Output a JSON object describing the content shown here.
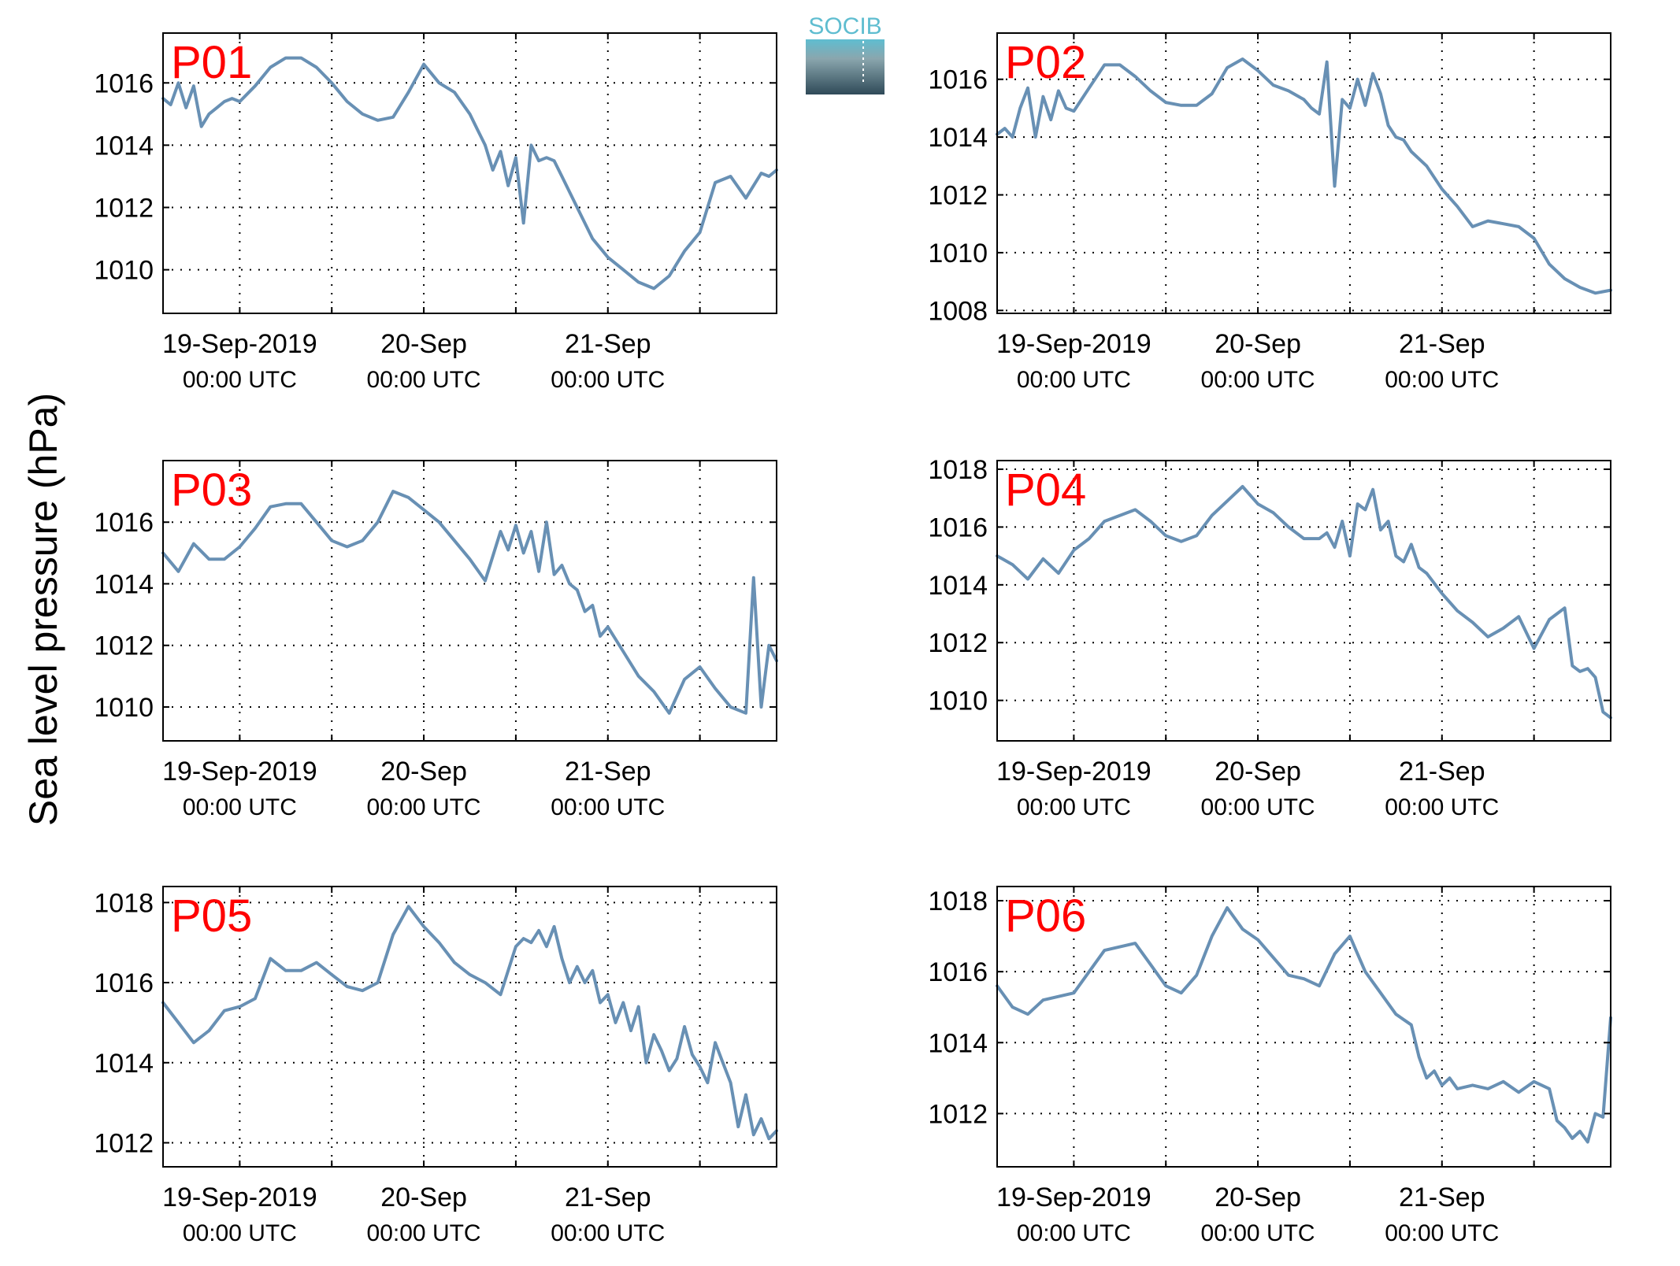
{
  "figure": {
    "ylabel": "Sea level pressure (hPa)",
    "logo_text": "SOCIB",
    "line_color": "#6890B4",
    "label_color": "#FF0000",
    "x_tick_dates": [
      "19-Sep-2019",
      "20-Sep",
      "21-Sep"
    ],
    "x_tick_time": "00:00 UTC"
  },
  "chart_data": [
    {
      "type": "line",
      "title": "P01",
      "xlabel": "",
      "ylabel": "Sea level pressure (hPa)",
      "x_unit": "hours since 19-Sep-2019 00:00 UTC",
      "xlim": [
        -10,
        70
      ],
      "ylim": [
        1008.6,
        1017.6
      ],
      "yticks": [
        1010,
        1012,
        1014,
        1016
      ],
      "grid": true,
      "x": [
        -10,
        -9,
        -8,
        -7,
        -6,
        -5,
        -4,
        -3,
        -2,
        -1,
        0,
        2,
        4,
        6,
        8,
        10,
        12,
        14,
        16,
        18,
        20,
        22,
        24,
        26,
        28,
        30,
        31,
        32,
        33,
        34,
        35,
        36,
        37,
        38,
        39,
        40,
        41,
        42,
        44,
        46,
        48,
        50,
        52,
        54,
        56,
        58,
        60,
        62,
        64,
        66,
        68,
        69,
        70
      ],
      "values": [
        1015.5,
        1015.3,
        1016.0,
        1015.2,
        1015.9,
        1014.6,
        1015.0,
        1015.2,
        1015.4,
        1015.5,
        1015.4,
        1015.9,
        1016.5,
        1016.8,
        1016.8,
        1016.5,
        1016.0,
        1015.4,
        1015.0,
        1014.8,
        1014.9,
        1015.7,
        1016.6,
        1016.0,
        1015.7,
        1015.0,
        1014.5,
        1014.0,
        1013.2,
        1013.8,
        1012.7,
        1013.6,
        1011.5,
        1014.0,
        1013.5,
        1013.6,
        1013.5,
        1013.0,
        1012.0,
        1011.0,
        1010.4,
        1010.0,
        1009.6,
        1009.4,
        1009.8,
        1010.6,
        1011.2,
        1012.8,
        1013.0,
        1012.3,
        1013.1,
        1013.0,
        1013.2
      ],
      "series": []
    },
    {
      "type": "line",
      "title": "P02",
      "xlabel": "",
      "ylabel": "Sea level pressure (hPa)",
      "x_unit": "hours since 19-Sep-2019 00:00 UTC",
      "xlim": [
        -10,
        70
      ],
      "ylim": [
        1007.9,
        1017.6
      ],
      "yticks": [
        1008,
        1010,
        1012,
        1014,
        1016
      ],
      "grid": true,
      "x": [
        -10,
        -9,
        -8,
        -7,
        -6,
        -5,
        -4,
        -3,
        -2,
        -1,
        0,
        2,
        4,
        6,
        8,
        10,
        12,
        14,
        16,
        18,
        20,
        22,
        24,
        26,
        28,
        30,
        31,
        32,
        33,
        34,
        35,
        36,
        37,
        38,
        39,
        40,
        41,
        42,
        43,
        44,
        46,
        48,
        50,
        52,
        54,
        56,
        58,
        60,
        62,
        64,
        66,
        68,
        70
      ],
      "values": [
        1014.1,
        1014.3,
        1014.0,
        1015.0,
        1015.7,
        1014.0,
        1015.4,
        1014.6,
        1015.6,
        1015.0,
        1014.9,
        1015.7,
        1016.5,
        1016.5,
        1016.1,
        1015.6,
        1015.2,
        1015.1,
        1015.1,
        1015.5,
        1016.4,
        1016.7,
        1016.3,
        1015.8,
        1015.6,
        1015.3,
        1015.0,
        1014.8,
        1016.6,
        1012.3,
        1015.3,
        1015.0,
        1016.0,
        1015.1,
        1016.2,
        1015.5,
        1014.4,
        1014.0,
        1013.9,
        1013.5,
        1013.0,
        1012.2,
        1011.6,
        1010.9,
        1011.1,
        1011.0,
        1010.9,
        1010.5,
        1009.6,
        1009.1,
        1008.8,
        1008.6,
        1008.7
      ],
      "series": []
    },
    {
      "type": "line",
      "title": "P03",
      "xlabel": "",
      "ylabel": "Sea level pressure (hPa)",
      "x_unit": "hours since 19-Sep-2019 00:00 UTC",
      "xlim": [
        -10,
        70
      ],
      "ylim": [
        1008.9,
        1018.0
      ],
      "yticks": [
        1010,
        1012,
        1014,
        1016
      ],
      "grid": true,
      "x": [
        -10,
        -8,
        -6,
        -4,
        -2,
        0,
        2,
        4,
        6,
        8,
        10,
        12,
        14,
        16,
        18,
        20,
        22,
        24,
        26,
        28,
        30,
        32,
        34,
        35,
        36,
        37,
        38,
        39,
        40,
        41,
        42,
        43,
        44,
        45,
        46,
        47,
        48,
        50,
        52,
        54,
        56,
        58,
        60,
        62,
        64,
        66,
        67,
        68,
        69,
        70
      ],
      "values": [
        1015.0,
        1014.4,
        1015.3,
        1014.8,
        1014.8,
        1015.2,
        1015.8,
        1016.5,
        1016.6,
        1016.6,
        1016.0,
        1015.4,
        1015.2,
        1015.4,
        1016.0,
        1017.0,
        1016.8,
        1016.4,
        1016.0,
        1015.4,
        1014.8,
        1014.1,
        1015.7,
        1015.1,
        1015.9,
        1015.0,
        1015.7,
        1014.4,
        1016.0,
        1014.3,
        1014.6,
        1014.0,
        1013.8,
        1013.1,
        1013.3,
        1012.3,
        1012.6,
        1011.8,
        1011.0,
        1010.5,
        1009.8,
        1010.9,
        1011.3,
        1010.6,
        1010.0,
        1009.8,
        1014.2,
        1010.0,
        1012.0,
        1011.5
      ],
      "series": []
    },
    {
      "type": "line",
      "title": "P04",
      "xlabel": "",
      "ylabel": "Sea level pressure (hPa)",
      "x_unit": "hours since 19-Sep-2019 00:00 UTC",
      "xlim": [
        -10,
        70
      ],
      "ylim": [
        1008.6,
        1018.3
      ],
      "yticks": [
        1010,
        1012,
        1014,
        1016,
        1018
      ],
      "grid": true,
      "x": [
        -10,
        -8,
        -6,
        -4,
        -2,
        0,
        2,
        4,
        6,
        8,
        10,
        12,
        14,
        16,
        18,
        20,
        22,
        24,
        26,
        28,
        30,
        32,
        33,
        34,
        35,
        36,
        37,
        38,
        39,
        40,
        41,
        42,
        43,
        44,
        45,
        46,
        48,
        50,
        52,
        54,
        56,
        58,
        60,
        62,
        64,
        65,
        66,
        67,
        68,
        69,
        70
      ],
      "values": [
        1015.0,
        1014.7,
        1014.2,
        1014.9,
        1014.4,
        1015.2,
        1015.6,
        1016.2,
        1016.4,
        1016.6,
        1016.2,
        1015.7,
        1015.5,
        1015.7,
        1016.4,
        1016.9,
        1017.4,
        1016.8,
        1016.5,
        1016.0,
        1015.6,
        1015.6,
        1015.8,
        1015.3,
        1016.2,
        1015.0,
        1016.8,
        1016.6,
        1017.3,
        1015.9,
        1016.2,
        1015.0,
        1014.8,
        1015.4,
        1014.6,
        1014.4,
        1013.7,
        1013.1,
        1012.7,
        1012.2,
        1012.5,
        1012.9,
        1011.8,
        1012.8,
        1013.2,
        1011.2,
        1011.0,
        1011.1,
        1010.8,
        1009.6,
        1009.4
      ],
      "series": []
    },
    {
      "type": "line",
      "title": "P05",
      "xlabel": "",
      "ylabel": "Sea level pressure (hPa)",
      "x_unit": "hours since 19-Sep-2019 00:00 UTC",
      "xlim": [
        -10,
        70
      ],
      "ylim": [
        1011.4,
        1018.4
      ],
      "yticks": [
        1012,
        1014,
        1016,
        1018
      ],
      "grid": true,
      "x": [
        -10,
        -8,
        -6,
        -4,
        -2,
        0,
        2,
        4,
        6,
        8,
        10,
        12,
        14,
        16,
        18,
        20,
        22,
        24,
        26,
        28,
        30,
        32,
        34,
        36,
        37,
        38,
        39,
        40,
        41,
        42,
        43,
        44,
        45,
        46,
        47,
        48,
        49,
        50,
        51,
        52,
        53,
        54,
        55,
        56,
        57,
        58,
        59,
        60,
        61,
        62,
        63,
        64,
        65,
        66,
        67,
        68,
        69,
        70
      ],
      "values": [
        1015.5,
        1015.0,
        1014.5,
        1014.8,
        1015.3,
        1015.4,
        1015.6,
        1016.6,
        1016.3,
        1016.3,
        1016.5,
        1016.2,
        1015.9,
        1015.8,
        1016.0,
        1017.2,
        1017.9,
        1017.4,
        1017.0,
        1016.5,
        1016.2,
        1016.0,
        1015.7,
        1016.9,
        1017.1,
        1017.0,
        1017.3,
        1016.9,
        1017.4,
        1016.6,
        1016.0,
        1016.4,
        1016.0,
        1016.3,
        1015.5,
        1015.7,
        1015.0,
        1015.5,
        1014.8,
        1015.4,
        1014.0,
        1014.7,
        1014.3,
        1013.8,
        1014.1,
        1014.9,
        1014.2,
        1013.9,
        1013.5,
        1014.5,
        1014.0,
        1013.5,
        1012.4,
        1013.2,
        1012.2,
        1012.6,
        1012.1,
        1012.3
      ],
      "series": []
    },
    {
      "type": "line",
      "title": "P06",
      "xlabel": "",
      "ylabel": "Sea level pressure (hPa)",
      "x_unit": "hours since 19-Sep-2019 00:00 UTC",
      "xlim": [
        -10,
        70
      ],
      "ylim": [
        1010.5,
        1018.4
      ],
      "yticks": [
        1012,
        1014,
        1016,
        1018
      ],
      "grid": true,
      "x": [
        -10,
        -8,
        -6,
        -4,
        -2,
        0,
        2,
        4,
        6,
        8,
        10,
        12,
        14,
        16,
        18,
        20,
        22,
        24,
        26,
        28,
        30,
        32,
        34,
        36,
        38,
        40,
        42,
        44,
        45,
        46,
        47,
        48,
        49,
        50,
        52,
        54,
        56,
        58,
        60,
        62,
        63,
        64,
        65,
        66,
        67,
        68,
        69,
        70
      ],
      "values": [
        1015.6,
        1015.0,
        1014.8,
        1015.2,
        1015.3,
        1015.4,
        1016.0,
        1016.6,
        1016.7,
        1016.8,
        1016.2,
        1015.6,
        1015.4,
        1015.9,
        1017.0,
        1017.8,
        1017.2,
        1016.9,
        1016.4,
        1015.9,
        1015.8,
        1015.6,
        1016.5,
        1017.0,
        1016.0,
        1015.4,
        1014.8,
        1014.5,
        1013.6,
        1013.0,
        1013.2,
        1012.8,
        1013.0,
        1012.7,
        1012.8,
        1012.7,
        1012.9,
        1012.6,
        1012.9,
        1012.7,
        1011.8,
        1011.6,
        1011.3,
        1011.5,
        1011.2,
        1012.0,
        1011.9,
        1014.7
      ],
      "series": []
    }
  ]
}
